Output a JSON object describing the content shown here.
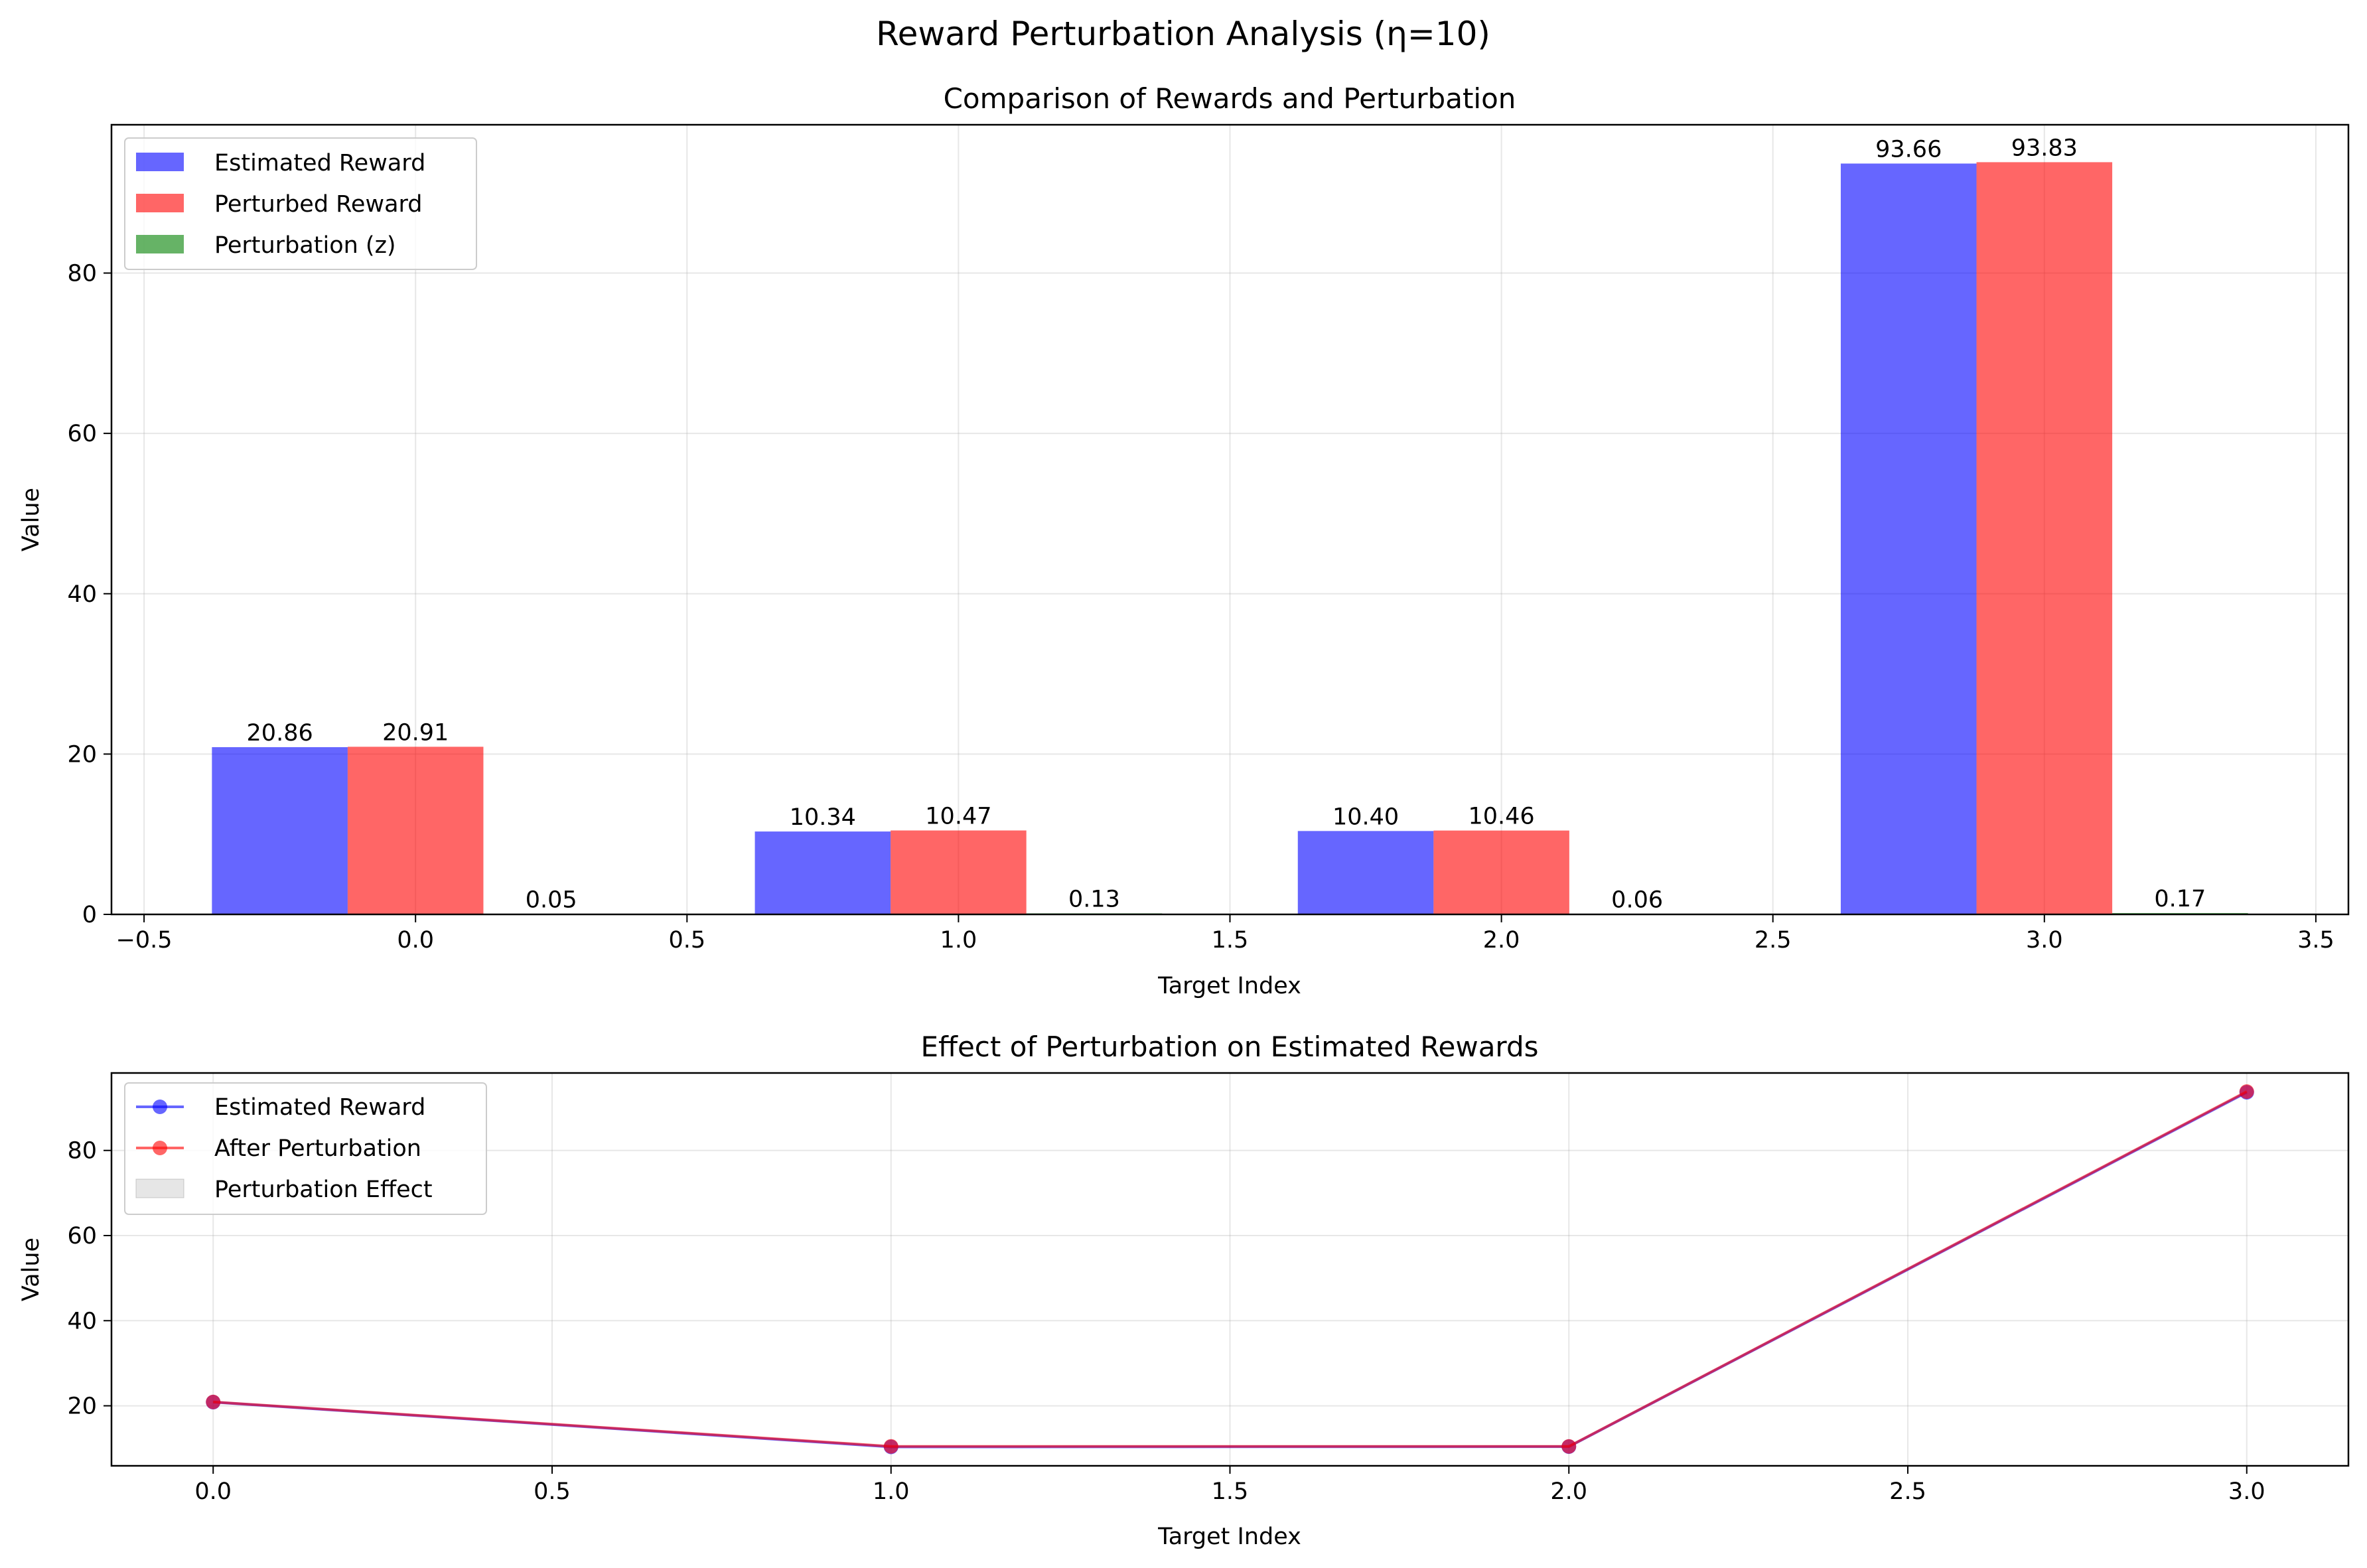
{
  "figure_title": "Reward Perturbation Analysis (η=10)",
  "colors": {
    "estimated": "#0000ff",
    "perturbed": "#ff0000",
    "perturbation": "#008000",
    "line_overlap": "#b01e63",
    "grid": "#b0b0b0",
    "fill_effect": "#cccccc"
  },
  "chart_data": [
    {
      "type": "bar",
      "title": "Comparison of Rewards and Perturbation",
      "xlabel": "Target Index",
      "ylabel": "Value",
      "xlim": [
        -0.56,
        3.56
      ],
      "ylim": [
        0,
        98.5
      ],
      "xticks": [
        -0.5,
        0.0,
        0.5,
        1.0,
        1.5,
        2.0,
        2.5,
        3.0,
        3.5
      ],
      "xtick_labels": [
        "−0.5",
        "0.0",
        "0.5",
        "1.0",
        "1.5",
        "2.0",
        "2.5",
        "3.0",
        "3.5"
      ],
      "yticks": [
        0,
        20,
        40,
        60,
        80
      ],
      "ytick_labels": [
        "0",
        "20",
        "40",
        "60",
        "80"
      ],
      "grid": true,
      "legend_position": "upper left",
      "categories": [
        0,
        1,
        2,
        3
      ],
      "bar_width": 0.25,
      "series": [
        {
          "name": "Estimated Reward",
          "values": [
            20.86,
            10.34,
            10.4,
            93.66
          ],
          "offset": -0.25,
          "color": "#0000ff",
          "alpha": 0.6,
          "labels": [
            "20.86",
            "10.34",
            "10.40",
            "93.66"
          ]
        },
        {
          "name": "Perturbed Reward",
          "values": [
            20.91,
            10.47,
            10.46,
            93.83
          ],
          "offset": 0.0,
          "color": "#ff0000",
          "alpha": 0.6,
          "labels": [
            "20.91",
            "10.47",
            "10.46",
            "93.83"
          ]
        },
        {
          "name": "Perturbation (z)",
          "values": [
            0.05,
            0.13,
            0.06,
            0.17
          ],
          "offset": 0.25,
          "color": "#008000",
          "alpha": 0.6,
          "labels": [
            "0.05",
            "0.13",
            "0.06",
            "0.17"
          ]
        }
      ]
    },
    {
      "type": "line",
      "title": "Effect of Perturbation on Estimated Rewards",
      "xlabel": "Target Index",
      "ylabel": "Value",
      "xlim": [
        -0.15,
        3.15
      ],
      "ylim": [
        5.9,
        98.2
      ],
      "xticks": [
        0.0,
        0.5,
        1.0,
        1.5,
        2.0,
        2.5,
        3.0
      ],
      "xtick_labels": [
        "0.0",
        "0.5",
        "1.0",
        "1.5",
        "2.0",
        "2.5",
        "3.0"
      ],
      "yticks": [
        20,
        40,
        60,
        80
      ],
      "ytick_labels": [
        "20",
        "40",
        "60",
        "80"
      ],
      "grid": true,
      "legend_position": "upper left",
      "x": [
        0,
        1,
        2,
        3
      ],
      "series": [
        {
          "name": "Estimated Reward",
          "values": [
            20.86,
            10.34,
            10.4,
            93.66
          ],
          "color": "#0000ff",
          "alpha": 0.6,
          "marker": "o"
        },
        {
          "name": "After Perturbation",
          "values": [
            20.91,
            10.47,
            10.46,
            93.83
          ],
          "color": "#ff0000",
          "alpha": 0.6,
          "marker": "o"
        }
      ],
      "fill_between": {
        "name": "Perturbation Effect",
        "color": "#808080",
        "alpha": 0.2
      }
    }
  ]
}
